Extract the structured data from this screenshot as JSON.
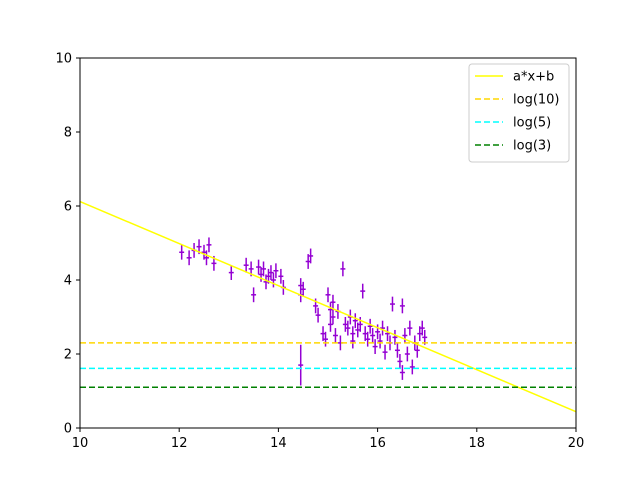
{
  "chart_data": {
    "type": "scatter",
    "xlim": [
      10,
      20
    ],
    "ylim": [
      0,
      10
    ],
    "xticks": [
      10,
      12,
      14,
      16,
      18,
      20
    ],
    "yticks": [
      0,
      2,
      4,
      6,
      8,
      10
    ],
    "grid": false,
    "legend_position": "top-right",
    "series": [
      {
        "name": "a*x+b",
        "kind": "line",
        "style": "solid",
        "color": "#ffff00",
        "x": [
          10,
          20
        ],
        "y": [
          6.12,
          0.44
        ]
      },
      {
        "name": "log(10)",
        "kind": "hline",
        "style": "dashed",
        "color": "#ffd700",
        "y": 2.3
      },
      {
        "name": "log(5)",
        "kind": "hline",
        "style": "dashed",
        "color": "#00ffff",
        "y": 1.61
      },
      {
        "name": "log(3)",
        "kind": "hline",
        "style": "dashed",
        "color": "#008000",
        "y": 1.1
      }
    ],
    "points": {
      "color": "#9400d3",
      "x_err": 0.05,
      "data": [
        [
          12.05,
          4.75,
          0.2
        ],
        [
          12.2,
          4.6,
          0.2
        ],
        [
          12.3,
          4.8,
          0.2
        ],
        [
          12.4,
          4.9,
          0.2
        ],
        [
          12.5,
          4.75,
          0.2
        ],
        [
          12.6,
          4.95,
          0.2
        ],
        [
          12.55,
          4.6,
          0.2
        ],
        [
          12.7,
          4.45,
          0.2
        ],
        [
          13.05,
          4.2,
          0.2
        ],
        [
          13.35,
          4.4,
          0.2
        ],
        [
          13.45,
          4.3,
          0.2
        ],
        [
          13.5,
          3.6,
          0.2
        ],
        [
          13.6,
          4.35,
          0.2
        ],
        [
          13.65,
          4.15,
          0.2
        ],
        [
          13.7,
          4.3,
          0.2
        ],
        [
          13.75,
          3.95,
          0.2
        ],
        [
          13.8,
          4.1,
          0.2
        ],
        [
          13.85,
          4.2,
          0.2
        ],
        [
          13.9,
          4.0,
          0.2
        ],
        [
          13.95,
          4.25,
          0.2
        ],
        [
          14.05,
          4.1,
          0.2
        ],
        [
          14.1,
          3.8,
          0.2
        ],
        [
          14.45,
          3.85,
          0.2
        ],
        [
          14.45,
          3.6,
          0.2
        ],
        [
          14.5,
          3.75,
          0.2
        ],
        [
          14.45,
          1.7,
          0.55
        ],
        [
          14.6,
          4.5,
          0.2
        ],
        [
          14.65,
          4.65,
          0.2
        ],
        [
          14.75,
          3.3,
          0.2
        ],
        [
          14.8,
          3.05,
          0.2
        ],
        [
          14.9,
          2.55,
          0.2
        ],
        [
          14.95,
          2.4,
          0.2
        ],
        [
          15.0,
          3.6,
          0.2
        ],
        [
          15.05,
          3.2,
          0.2
        ],
        [
          15.05,
          2.8,
          0.2
        ],
        [
          15.1,
          3.4,
          0.2
        ],
        [
          15.1,
          3.0,
          0.2
        ],
        [
          15.15,
          2.5,
          0.2
        ],
        [
          15.2,
          3.15,
          0.2
        ],
        [
          15.25,
          2.3,
          0.2
        ],
        [
          15.3,
          4.3,
          0.2
        ],
        [
          15.35,
          2.8,
          0.2
        ],
        [
          15.4,
          2.7,
          0.2
        ],
        [
          15.45,
          3.0,
          0.2
        ],
        [
          15.5,
          2.55,
          0.2
        ],
        [
          15.5,
          2.35,
          0.2
        ],
        [
          15.55,
          2.9,
          0.2
        ],
        [
          15.6,
          2.65,
          0.2
        ],
        [
          15.65,
          2.8,
          0.2
        ],
        [
          15.7,
          3.7,
          0.2
        ],
        [
          15.75,
          2.55,
          0.2
        ],
        [
          15.8,
          2.4,
          0.2
        ],
        [
          15.85,
          2.75,
          0.2
        ],
        [
          15.9,
          2.5,
          0.2
        ],
        [
          15.95,
          2.2,
          0.2
        ],
        [
          16.0,
          2.6,
          0.2
        ],
        [
          16.05,
          2.35,
          0.2
        ],
        [
          16.1,
          2.7,
          0.2
        ],
        [
          16.15,
          2.05,
          0.2
        ],
        [
          16.2,
          2.55,
          0.2
        ],
        [
          16.25,
          2.3,
          0.2
        ],
        [
          16.3,
          3.35,
          0.2
        ],
        [
          16.35,
          2.45,
          0.2
        ],
        [
          16.4,
          2.1,
          0.2
        ],
        [
          16.45,
          1.8,
          0.2
        ],
        [
          16.5,
          3.3,
          0.2
        ],
        [
          16.5,
          1.5,
          0.2
        ],
        [
          16.55,
          2.5,
          0.2
        ],
        [
          16.6,
          2.0,
          0.2
        ],
        [
          16.65,
          2.7,
          0.2
        ],
        [
          16.7,
          1.65,
          0.2
        ],
        [
          16.75,
          2.3,
          0.2
        ],
        [
          16.8,
          2.1,
          0.2
        ],
        [
          16.85,
          2.55,
          0.2
        ],
        [
          16.9,
          2.7,
          0.2
        ],
        [
          16.95,
          2.45,
          0.2
        ]
      ]
    }
  }
}
